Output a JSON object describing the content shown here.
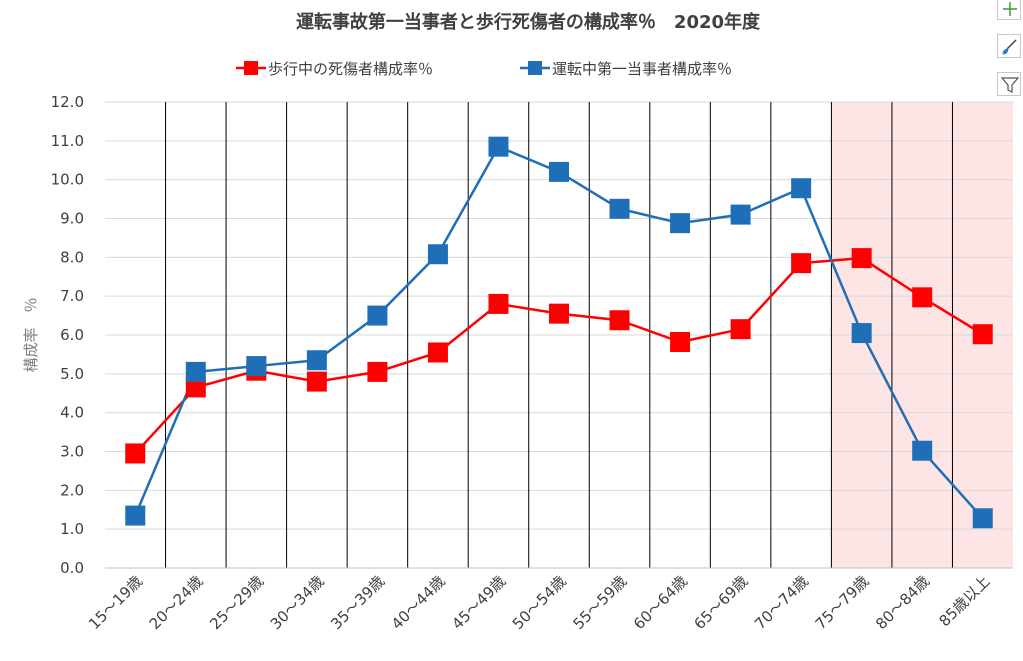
{
  "chart_data": {
    "type": "line",
    "title": "運転事故第一当事者と歩行死傷者の構成率％　2020年度",
    "ylabel": "構成率　％",
    "xlabel": "",
    "ylim": [
      0,
      12
    ],
    "ytick_step": 1,
    "ytick_labels": [
      "0.0",
      "1.0",
      "2.0",
      "3.0",
      "4.0",
      "5.0",
      "6.0",
      "7.0",
      "8.0",
      "9.0",
      "10.0",
      "11.0",
      "12.0"
    ],
    "grid": true,
    "legend_position": "top",
    "categories": [
      "15～19歳",
      "20～24歳",
      "25～29歳",
      "30～34歳",
      "35～39歳",
      "40～44歳",
      "45～49歳",
      "50～54歳",
      "55～59歳",
      "60～64歳",
      "65～69歳",
      "70～74歳",
      "75～79歳",
      "80～84歳",
      "85歳以上"
    ],
    "highlight_categories": [
      "75～79歳",
      "80～84歳",
      "85歳以上"
    ],
    "highlight_color": "#fde5e5",
    "series": [
      {
        "name": "歩行中の死傷者構成率％",
        "color": "#ff0000",
        "values": [
          2.95,
          4.65,
          5.08,
          4.8,
          5.05,
          5.55,
          6.8,
          6.55,
          6.38,
          5.82,
          6.15,
          7.85,
          7.98,
          6.97,
          6.02
        ]
      },
      {
        "name": "運転中第一当事者構成率％",
        "color": "#1f6fb8",
        "values": [
          1.35,
          5.05,
          5.2,
          5.35,
          6.5,
          8.08,
          10.85,
          10.2,
          9.25,
          8.88,
          9.1,
          9.78,
          6.05,
          3.02,
          1.28
        ]
      }
    ]
  },
  "toolbar": {
    "buttons": [
      {
        "name": "chart-elements-button",
        "icon": "plus-icon"
      },
      {
        "name": "chart-styles-button",
        "icon": "brush-icon"
      },
      {
        "name": "chart-filters-button",
        "icon": "filter-icon"
      }
    ]
  }
}
